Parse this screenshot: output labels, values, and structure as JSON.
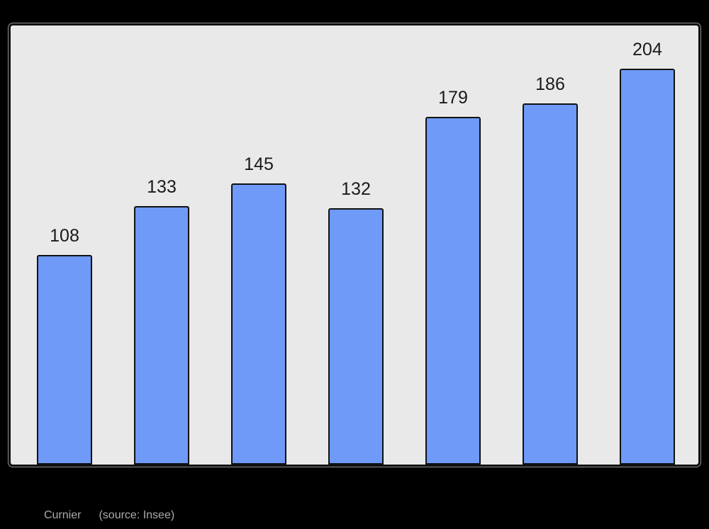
{
  "chart_data": {
    "type": "bar",
    "values": [
      108,
      133,
      145,
      132,
      179,
      186,
      204
    ],
    "data_labels": [
      "108",
      "133",
      "145",
      "132",
      "179",
      "186",
      "204"
    ],
    "title": "",
    "xlabel": "",
    "ylabel": "",
    "ylim": [
      0,
      224
    ],
    "grid": false,
    "legend": false,
    "bar_color": "#6f9af7",
    "bar_border_color": "#111111",
    "plot_background": "#e9e9e9",
    "page_background": "#000000",
    "value_label_color": "#1a1a1a"
  },
  "footer": {
    "label": "Curnier",
    "source": "(source: Insee)",
    "text_color": "#ababab"
  }
}
